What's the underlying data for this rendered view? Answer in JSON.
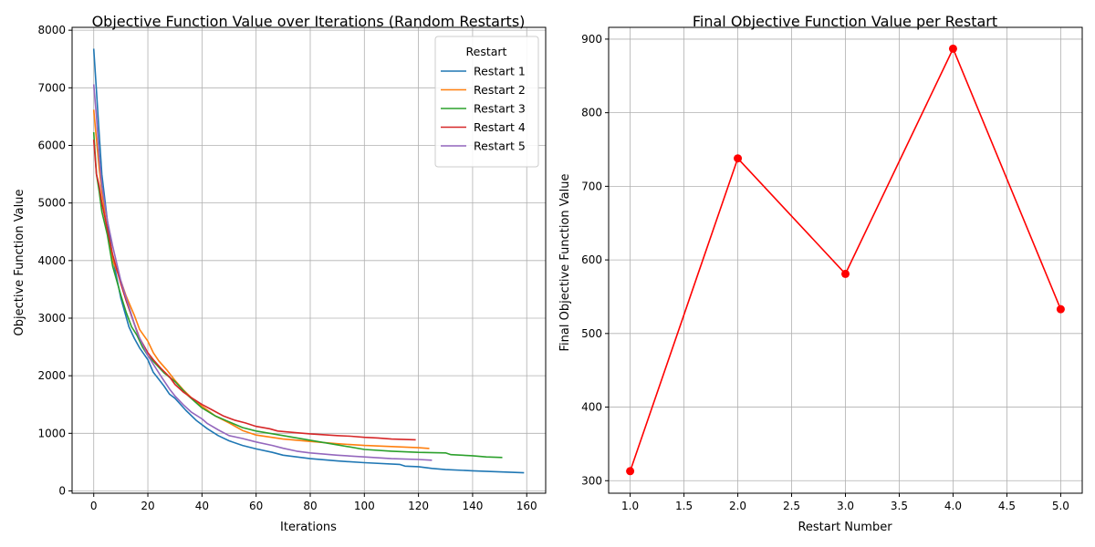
{
  "colors": {
    "restart_1": "#1f77b4",
    "restart_2": "#ff7f0e",
    "restart_3": "#2ca02c",
    "restart_4": "#d62728",
    "restart_5": "#9467bd",
    "final": "#ff0000",
    "grid": "#b0b0b0"
  },
  "chart_data": [
    {
      "type": "line",
      "title": "Objective Function Value over Iterations (Random Restarts)",
      "xlabel": "Iterations",
      "ylabel": "Objective Function Value",
      "xlim": [
        -8,
        167
      ],
      "ylim": [
        -40,
        8050
      ],
      "xticks": [
        0,
        20,
        40,
        60,
        80,
        100,
        120,
        140,
        160
      ],
      "yticks": [
        0,
        1000,
        2000,
        3000,
        4000,
        5000,
        6000,
        7000,
        8000
      ],
      "grid": true,
      "legend": {
        "title": "Restart",
        "placement": "top-right"
      },
      "series": [
        {
          "name": "Restart 1",
          "color_key": "restart_1",
          "x": [
            0,
            1,
            2,
            3,
            5,
            7,
            10,
            13,
            15,
            17,
            20,
            22,
            24,
            26,
            28,
            30,
            34,
            38,
            42,
            46,
            50,
            55,
            60,
            66,
            70,
            80,
            90,
            100,
            113,
            115,
            120,
            125,
            130,
            140,
            150,
            159
          ],
          "y": [
            7680,
            6950,
            6200,
            5500,
            4700,
            4050,
            3350,
            2850,
            2650,
            2480,
            2280,
            2060,
            1940,
            1820,
            1680,
            1610,
            1400,
            1220,
            1080,
            960,
            870,
            790,
            730,
            670,
            620,
            560,
            520,
            490,
            460,
            430,
            420,
            390,
            370,
            350,
            330,
            315
          ]
        },
        {
          "name": "Restart 2",
          "color_key": "restart_2",
          "x": [
            0,
            1,
            2,
            3,
            5,
            7,
            10,
            12,
            15,
            17,
            20,
            22,
            24,
            27,
            30,
            33,
            36,
            40,
            45,
            50,
            55,
            60,
            70,
            80,
            90,
            100,
            110,
            120,
            124
          ],
          "y": [
            6620,
            6100,
            5600,
            5200,
            4500,
            4000,
            3650,
            3380,
            3050,
            2800,
            2600,
            2400,
            2260,
            2100,
            1920,
            1760,
            1620,
            1470,
            1300,
            1180,
            1050,
            970,
            900,
            860,
            820,
            790,
            770,
            750,
            738
          ]
        },
        {
          "name": "Restart 3",
          "color_key": "restart_3",
          "x": [
            0,
            1,
            2,
            3,
            5,
            7,
            10,
            12,
            14,
            16,
            18,
            20,
            23,
            26,
            30,
            35,
            40,
            45,
            50,
            55,
            60,
            70,
            80,
            90,
            100,
            110,
            120,
            130,
            132,
            140,
            145,
            151
          ],
          "y": [
            6230,
            5500,
            5200,
            4850,
            4450,
            3900,
            3400,
            3100,
            2850,
            2700,
            2500,
            2350,
            2200,
            2050,
            1900,
            1650,
            1440,
            1300,
            1200,
            1100,
            1040,
            960,
            880,
            800,
            720,
            690,
            670,
            660,
            630,
            610,
            590,
            580
          ]
        },
        {
          "name": "Restart 4",
          "color_key": "restart_4",
          "x": [
            0,
            1,
            2,
            3,
            5,
            7,
            10,
            12,
            15,
            17,
            20,
            22,
            25,
            28,
            30,
            33,
            36,
            40,
            44,
            48,
            52,
            56,
            60,
            65,
            68,
            75,
            80,
            90,
            95,
            100,
            105,
            110,
            119
          ],
          "y": [
            6100,
            5500,
            5300,
            5000,
            4550,
            4100,
            3600,
            3300,
            2900,
            2650,
            2400,
            2280,
            2120,
            1980,
            1850,
            1720,
            1620,
            1500,
            1400,
            1300,
            1230,
            1180,
            1120,
            1080,
            1040,
            1010,
            990,
            960,
            950,
            930,
            920,
            900,
            887
          ]
        },
        {
          "name": "Restart 5",
          "color_key": "restart_5",
          "x": [
            0,
            1,
            2,
            3,
            5,
            7,
            10,
            12,
            14,
            16,
            18,
            20,
            22,
            25,
            28,
            30,
            33,
            36,
            40,
            42,
            46,
            50,
            55,
            60,
            66,
            70,
            75,
            80,
            90,
            100,
            110,
            120,
            125
          ],
          "y": [
            7060,
            6500,
            5800,
            5300,
            4700,
            4250,
            3650,
            3350,
            3050,
            2750,
            2550,
            2350,
            2200,
            1980,
            1770,
            1650,
            1500,
            1370,
            1250,
            1170,
            1060,
            960,
            910,
            850,
            790,
            740,
            690,
            660,
            620,
            590,
            560,
            545,
            533
          ]
        }
      ]
    },
    {
      "type": "line",
      "title": "Final Objective Function Value per Restart",
      "xlabel": "Restart Number",
      "ylabel": "Final Objective Function Value",
      "xlim": [
        0.8,
        5.2
      ],
      "ylim": [
        283,
        916
      ],
      "xticks": [
        "1.0",
        "1.5",
        "2.0",
        "2.5",
        "3.0",
        "3.5",
        "4.0",
        "4.5",
        "5.0"
      ],
      "yticks": [
        300,
        400,
        500,
        600,
        700,
        800,
        900
      ],
      "grid": true,
      "markers": true,
      "series": [
        {
          "color_key": "final",
          "x": [
            1,
            2,
            3,
            4,
            5
          ],
          "y": [
            313,
            738,
            581,
            887,
            533
          ]
        }
      ]
    }
  ]
}
